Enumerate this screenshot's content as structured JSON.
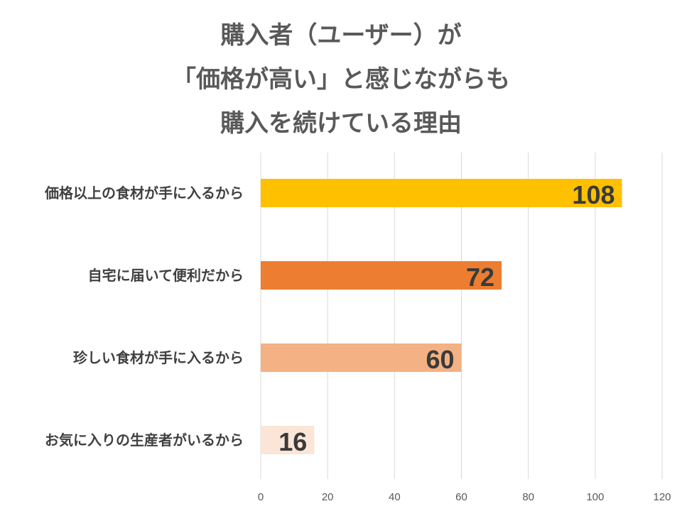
{
  "title_lines": [
    "購入者（ユーザー）が",
    "「価格が高い」と感じながらも",
    "購入を続けている理由"
  ],
  "chart_data": {
    "type": "bar",
    "orientation": "horizontal",
    "title": "購入者（ユーザー）が「価格が高い」と感じながらも購入を続けている理由",
    "categories": [
      "価格以上の食材が手に入るから",
      "自宅に届いて便利だから",
      "珍しい食材が手に入るから",
      "お気に入りの生産者がいるから"
    ],
    "values": [
      108,
      72,
      60,
      16
    ],
    "colors": [
      "#FFC000",
      "#ED7D31",
      "#F4B183",
      "#FBE5D6"
    ],
    "xlim": [
      0,
      120
    ],
    "x_ticks": [
      0,
      20,
      40,
      60,
      80,
      100,
      120
    ],
    "grid": true,
    "data_labels": true,
    "legend": "none"
  }
}
